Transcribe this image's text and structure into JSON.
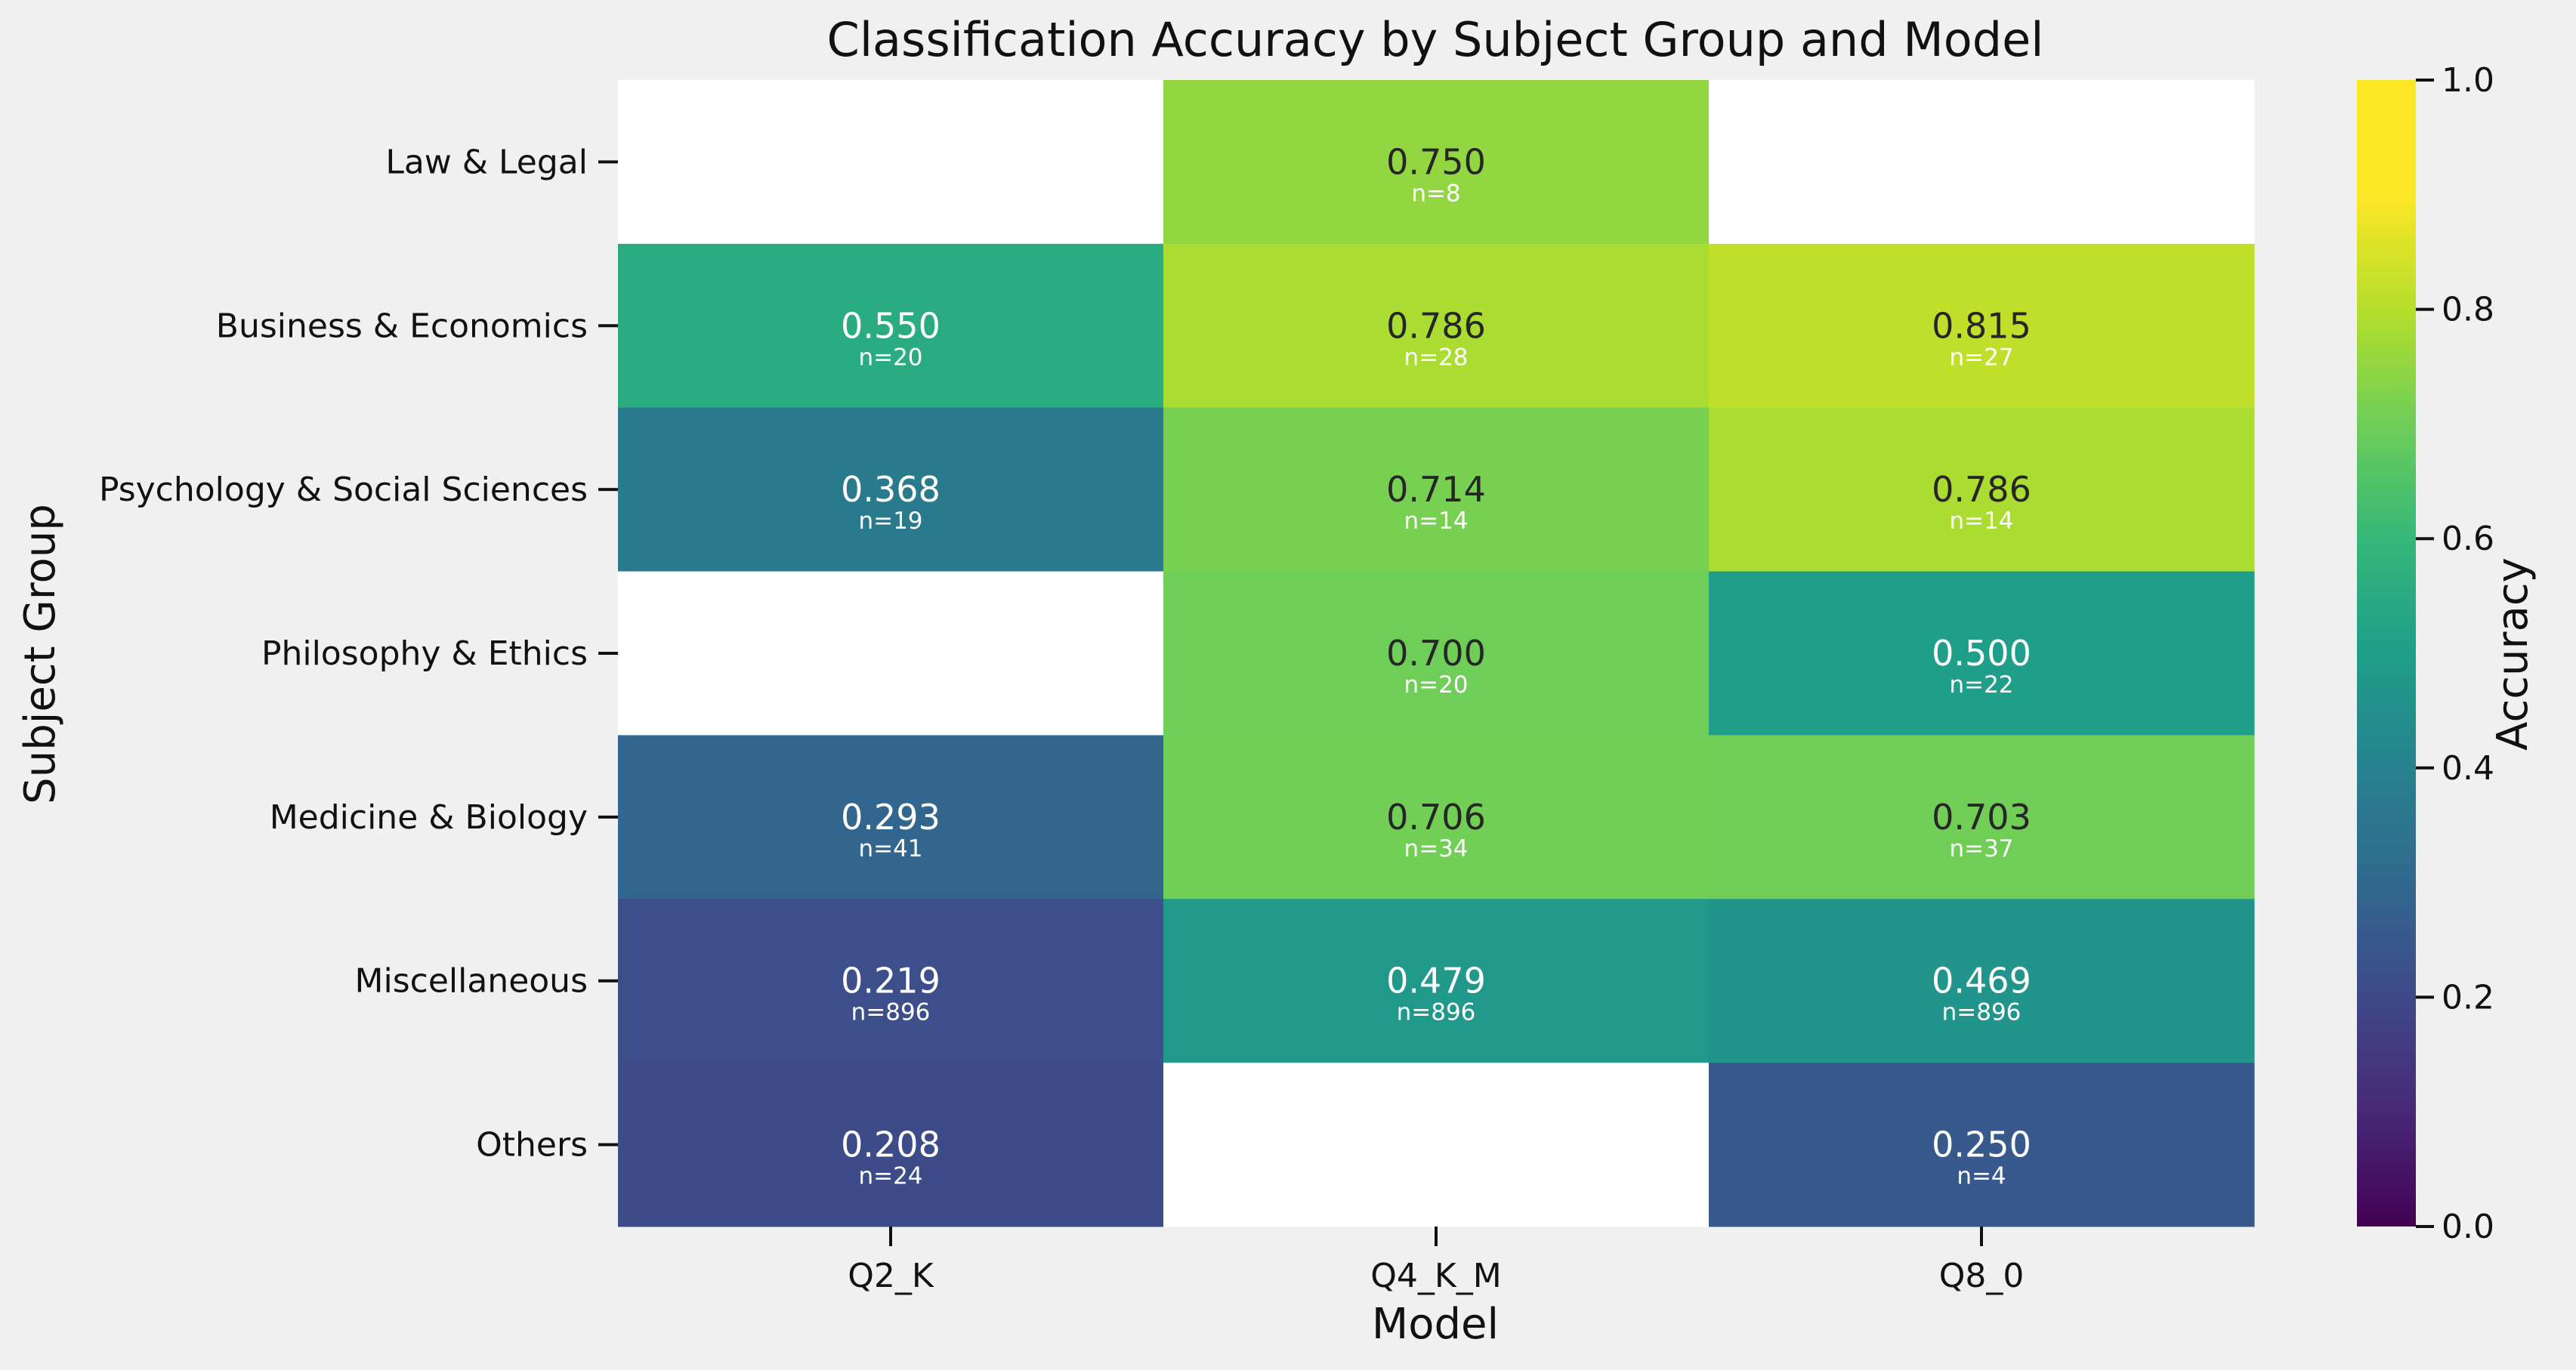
{
  "chart_data": {
    "type": "heatmap",
    "title": "Classification Accuracy by Subject Group and Model",
    "xlabel": "Model",
    "ylabel": "Subject Group",
    "x_categories": [
      "Q2_K",
      "Q4_K_M",
      "Q8_0"
    ],
    "y_categories": [
      "Law & Legal",
      "Business & Economics",
      "Psychology & Social Sciences",
      "Philosophy & Ethics",
      "Medicine & Biology",
      "Miscellaneous",
      "Others"
    ],
    "values": [
      [
        null,
        0.75,
        null
      ],
      [
        0.55,
        0.786,
        0.815
      ],
      [
        0.368,
        0.714,
        0.786
      ],
      [
        null,
        0.7,
        0.5
      ],
      [
        0.293,
        0.706,
        0.703
      ],
      [
        0.219,
        0.479,
        0.469
      ],
      [
        0.208,
        null,
        0.25
      ]
    ],
    "counts": [
      [
        null,
        8,
        null
      ],
      [
        20,
        28,
        27
      ],
      [
        19,
        14,
        14
      ],
      [
        null,
        20,
        22
      ],
      [
        41,
        34,
        37
      ],
      [
        896,
        896,
        896
      ],
      [
        24,
        null,
        4
      ]
    ],
    "value_labels": [
      [
        null,
        "0.750",
        null
      ],
      [
        "0.550",
        "0.786",
        "0.815"
      ],
      [
        "0.368",
        "0.714",
        "0.786"
      ],
      [
        null,
        "0.700",
        "0.500"
      ],
      [
        "0.293",
        "0.706",
        "0.703"
      ],
      [
        "0.219",
        "0.479",
        "0.469"
      ],
      [
        "0.208",
        null,
        "0.250"
      ]
    ],
    "count_labels": [
      [
        null,
        "n=8",
        null
      ],
      [
        "n=20",
        "n=28",
        "n=27"
      ],
      [
        "n=19",
        "n=14",
        "n=14"
      ],
      [
        null,
        "n=20",
        "n=22"
      ],
      [
        "n=41",
        "n=34",
        "n=37"
      ],
      [
        "n=896",
        "n=896",
        "n=896"
      ],
      [
        "n=24",
        null,
        "n=4"
      ]
    ],
    "colormap": "viridis",
    "vmin": 0.0,
    "vmax": 1.0,
    "colorbar": {
      "label": "Accuracy",
      "ticks": [
        0.0,
        0.2,
        0.4,
        0.6,
        0.8,
        1.0
      ],
      "tick_labels": [
        "0.0",
        "0.2",
        "0.4",
        "0.6",
        "0.8",
        "1.0"
      ]
    },
    "missing_color": "#ffffff",
    "background_color": "#f0f0f0"
  }
}
